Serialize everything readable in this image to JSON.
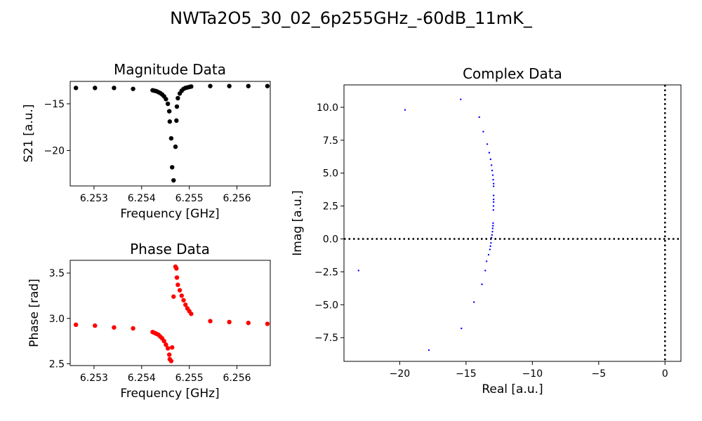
{
  "figure": {
    "suptitle": "NWTa2O5_30_02_6p255GHz_-60dB_11mK_"
  },
  "chart_data": [
    {
      "id": "magnitude",
      "type": "scatter",
      "title": "Magnitude Data",
      "xlabel": "Frequency [GHz]",
      "ylabel": "S21 [a.u.]",
      "xlim": [
        6.2525,
        6.2567
      ],
      "ylim": [
        -23.8,
        -12.6
      ],
      "xticks": [
        6.253,
        6.254,
        6.255,
        6.256
      ],
      "xtick_labels": [
        "6.253",
        "6.254",
        "6.255",
        "6.256"
      ],
      "yticks": [
        -15,
        -20
      ],
      "ytick_labels": [
        "−15",
        "−20"
      ],
      "color": "#000000",
      "series": [
        {
          "x": [
            6.25262,
            6.25302,
            6.25342,
            6.25382,
            6.25423,
            6.25427,
            6.25431,
            6.25435,
            6.25439,
            6.25443,
            6.25447,
            6.25451,
            6.25455,
            6.25458,
            6.25459,
            6.25462,
            6.25464,
            6.25467,
            6.25471,
            6.25473,
            6.25474,
            6.25476,
            6.2548,
            6.25484,
            6.25488,
            6.25492,
            6.25496,
            6.255,
            6.25504,
            6.25544,
            6.25584,
            6.25624,
            6.25664
          ],
          "y": [
            -13.3,
            -13.3,
            -13.3,
            -13.4,
            -13.55,
            -13.6,
            -13.65,
            -13.75,
            -13.85,
            -14.0,
            -14.2,
            -14.5,
            -15.0,
            -15.8,
            -16.9,
            -18.7,
            -21.8,
            -23.2,
            -19.6,
            -16.8,
            -15.3,
            -14.4,
            -13.9,
            -13.6,
            -13.4,
            -13.3,
            -13.25,
            -13.2,
            -13.15,
            -13.1,
            -13.1,
            -13.1,
            -13.1
          ]
        }
      ]
    },
    {
      "id": "phase",
      "type": "scatter",
      "title": "Phase Data",
      "xlabel": "Frequency [GHz]",
      "ylabel": "Phase [rad]",
      "xlim": [
        6.2525,
        6.2567
      ],
      "ylim": [
        2.48,
        3.64
      ],
      "xticks": [
        6.253,
        6.254,
        6.255,
        6.256
      ],
      "xtick_labels": [
        "6.253",
        "6.254",
        "6.255",
        "6.256"
      ],
      "yticks": [
        2.5,
        3.0,
        3.5
      ],
      "ytick_labels": [
        "2.5",
        "3.0",
        "3.5"
      ],
      "color": "#ff0000",
      "series": [
        {
          "x": [
            6.25262,
            6.25302,
            6.25342,
            6.25382,
            6.25423,
            6.25427,
            6.25431,
            6.25435,
            6.25439,
            6.25443,
            6.25447,
            6.25451,
            6.25455,
            6.25458,
            6.25459,
            6.25462,
            6.25464,
            6.25467,
            6.25471,
            6.25473,
            6.25474,
            6.25476,
            6.2548,
            6.25484,
            6.25488,
            6.25492,
            6.25496,
            6.255,
            6.25504,
            6.25544,
            6.25584,
            6.25624,
            6.25664
          ],
          "y": [
            2.93,
            2.92,
            2.9,
            2.89,
            2.85,
            2.84,
            2.83,
            2.82,
            2.8,
            2.78,
            2.75,
            2.71,
            2.67,
            2.6,
            2.55,
            2.53,
            2.68,
            3.24,
            3.57,
            3.55,
            3.45,
            3.37,
            3.31,
            3.25,
            3.2,
            3.15,
            3.11,
            3.08,
            3.05,
            2.97,
            2.96,
            2.95,
            2.94
          ]
        }
      ]
    },
    {
      "id": "complex",
      "type": "scatter",
      "title": "Complex Data",
      "xlabel": "Real [a.u.]",
      "ylabel": "Imag [a.u.]",
      "xlim": [
        -24.2,
        1.2
      ],
      "ylim": [
        -9.3,
        11.7
      ],
      "xticks": [
        -20,
        -15,
        -10,
        -5,
        0
      ],
      "xtick_labels": [
        "−20",
        "−15",
        "−10",
        "−5",
        "0"
      ],
      "yticks": [
        10.0,
        7.5,
        5.0,
        2.5,
        0.0,
        -2.5,
        -5.0,
        -7.5
      ],
      "ytick_labels": [
        "10.0",
        "7.5",
        "5.0",
        "2.5",
        "0.0",
        "−2.5",
        "−5.0",
        "−7.5"
      ],
      "color": "#0000ff",
      "reference_lines": {
        "x": 0,
        "y": 0,
        "style": "dotted"
      },
      "series": [
        {
          "x": [
            -15.4,
            -19.6,
            -14.0,
            -13.7,
            -13.4,
            -13.25,
            -13.15,
            -13.08,
            -13.03,
            -12.98,
            -12.95,
            -12.92,
            -12.92,
            -12.92,
            -12.92,
            -12.92,
            -12.93,
            -12.94,
            -12.96,
            -12.97,
            -12.99,
            -13.01,
            -13.04,
            -13.08,
            -13.12,
            -13.16,
            -13.2,
            -13.3,
            -13.45,
            -13.55,
            -13.8,
            -14.4,
            -15.35,
            -17.8,
            -23.1
          ],
          "y": [
            10.6,
            9.8,
            9.25,
            8.15,
            7.2,
            6.55,
            6.05,
            5.6,
            5.2,
            4.85,
            4.5,
            4.2,
            4.0,
            3.3,
            3.0,
            2.8,
            2.5,
            2.2,
            1.2,
            1.0,
            0.8,
            0.55,
            0.3,
            0.1,
            -0.3,
            -0.55,
            -0.8,
            -1.2,
            -1.7,
            -2.4,
            -3.45,
            -4.8,
            -6.8,
            -8.45,
            -2.4
          ]
        }
      ]
    }
  ]
}
